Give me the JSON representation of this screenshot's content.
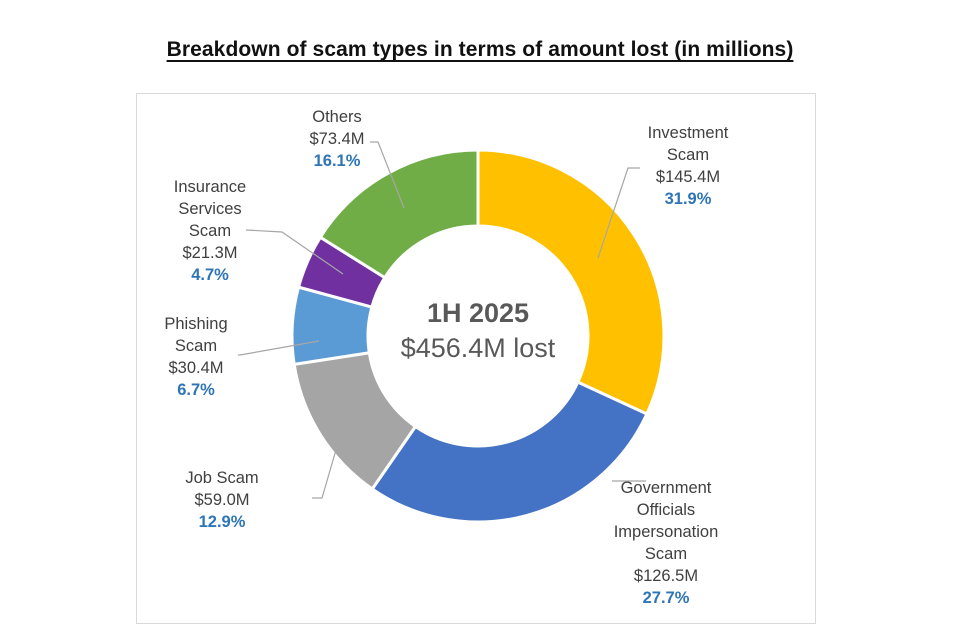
{
  "chart_data": {
    "type": "pie",
    "title": "Breakdown of scam types in terms of amount lost (in millions)",
    "center": {
      "period": "1H 2025",
      "total": "$456.4M lost"
    },
    "slices": [
      {
        "label": [
          "Investment",
          "Scam"
        ],
        "amount": "$145.4M",
        "value": 145.4,
        "percent_label": "31.9%",
        "color": "#FFC000"
      },
      {
        "label": [
          "Government",
          "Officials",
          "Impersonation",
          "Scam"
        ],
        "amount": "$126.5M",
        "value": 126.5,
        "percent_label": "27.7%",
        "color": "#4472C4"
      },
      {
        "label": [
          "Job Scam"
        ],
        "amount": "$59.0M",
        "value": 59.0,
        "percent_label": "12.9%",
        "color": "#A5A5A5"
      },
      {
        "label": [
          "Phishing",
          "Scam"
        ],
        "amount": "$30.4M",
        "value": 30.4,
        "percent_label": "6.7%",
        "color": "#5B9BD5"
      },
      {
        "label": [
          "Insurance",
          "Services",
          "Scam"
        ],
        "amount": "$21.3M",
        "value": 21.3,
        "percent_label": "4.7%",
        "color": "#7030A0"
      },
      {
        "label": [
          "Others"
        ],
        "amount": "$73.4M",
        "value": 73.4,
        "percent_label": "16.1%",
        "color": "#70AD47"
      }
    ],
    "percent_color": "#2E75B6",
    "legend": "none"
  }
}
